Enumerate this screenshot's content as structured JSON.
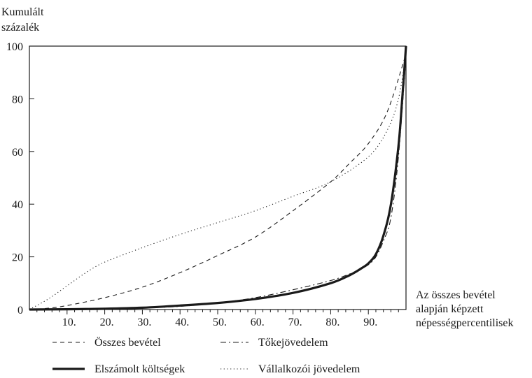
{
  "chart_data": {
    "type": "line",
    "ylabel_lines": [
      "Kumulált",
      "százalék"
    ],
    "xlabel_lines": [
      "Az összes bevétel",
      "alapján képzett",
      "népességpercentilisek"
    ],
    "xlim": [
      0,
      100
    ],
    "ylim": [
      0,
      100
    ],
    "x_ticks": [
      10,
      20,
      30,
      40,
      50,
      60,
      70,
      80,
      90
    ],
    "x_tick_labels": [
      "10.",
      "20.",
      "30.",
      "40.",
      "50.",
      "60.",
      "70.",
      "80.",
      "90."
    ],
    "y_ticks": [
      0,
      20,
      40,
      60,
      80,
      100
    ],
    "y_tick_labels": [
      "0",
      "20",
      "40",
      "60",
      "80",
      "100"
    ],
    "grid": false,
    "legend_position": "bottom",
    "series": [
      {
        "name": "Összes bevétel",
        "style": "dashed",
        "x": [
          0,
          5,
          10,
          20,
          30,
          40,
          50,
          60,
          70,
          80,
          85,
          90,
          95,
          100
        ],
        "y": [
          0,
          0.5,
          1.5,
          4.5,
          8.5,
          14,
          20.5,
          27.5,
          37.5,
          48.5,
          55.5,
          63,
          75,
          97
        ]
      },
      {
        "name": "Tőkejövedelem",
        "style": "dashdot",
        "x": [
          0,
          10,
          20,
          30,
          40,
          50,
          60,
          70,
          80,
          85,
          88,
          90,
          92,
          94,
          96,
          98,
          100
        ],
        "y": [
          0,
          0.1,
          0.3,
          0.6,
          1.2,
          2.5,
          4.5,
          7.5,
          11,
          13.5,
          15.5,
          17,
          20,
          26,
          35,
          58,
          96
        ]
      },
      {
        "name": "Elszámolt költségek",
        "style": "solid-thick",
        "x": [
          0,
          10,
          20,
          30,
          40,
          50,
          60,
          70,
          80,
          85,
          88,
          90,
          92,
          94,
          96,
          98,
          99,
          100
        ],
        "y": [
          0,
          0.1,
          0.3,
          0.7,
          1.5,
          2.5,
          4,
          6.3,
          10,
          13,
          15.5,
          17.5,
          21,
          28,
          40,
          62,
          80,
          100
        ]
      },
      {
        "name": "Vállalkozói jövedelem",
        "style": "dotted",
        "x": [
          0,
          5,
          10,
          15,
          20,
          30,
          40,
          50,
          60,
          70,
          80,
          90,
          95,
          98,
          100
        ],
        "y": [
          0,
          4,
          9,
          14,
          18,
          23.5,
          28.5,
          33,
          37.5,
          43,
          48.5,
          58,
          68,
          80,
          97
        ]
      }
    ]
  }
}
